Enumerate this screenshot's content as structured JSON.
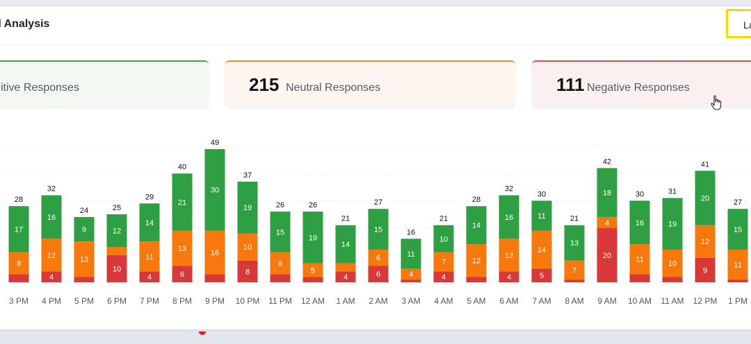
{
  "header": {
    "title": "d Analysis",
    "range_button": "La"
  },
  "cards": {
    "positive": {
      "count": "",
      "label": "itive Responses"
    },
    "neutral": {
      "count": "215",
      "label": "Neutral Responses"
    },
    "negative": {
      "count": "111",
      "label": "Negative Responses"
    }
  },
  "colors": {
    "positive": "#2ea043",
    "neutral": "#f7780c",
    "negative": "#d93838"
  },
  "chart_data": {
    "type": "bar",
    "stacked": true,
    "categories": [
      "3 PM",
      "4 PM",
      "5 PM",
      "6 PM",
      "7 PM",
      "8 PM",
      "9 PM",
      "10 PM",
      "11 PM",
      "12 AM",
      "1 AM",
      "2 AM",
      "3 AM",
      "4 AM",
      "5 AM",
      "6 AM",
      "7 AM",
      "8 AM",
      "9 AM",
      "10 AM",
      "11 AM",
      "12 PM",
      "1 PM"
    ],
    "totals": [
      28,
      32,
      24,
      25,
      29,
      40,
      49,
      37,
      26,
      26,
      21,
      27,
      16,
      21,
      28,
      32,
      30,
      21,
      42,
      30,
      31,
      41,
      27
    ],
    "series": [
      {
        "key": "negative",
        "values": [
          3,
          4,
          2,
          10,
          4,
          6,
          3,
          8,
          3,
          2,
          4,
          6,
          1,
          4,
          2,
          4,
          5,
          1,
          20,
          3,
          2,
          9,
          1
        ]
      },
      {
        "key": "neutral",
        "values": [
          8,
          12,
          13,
          3,
          11,
          13,
          16,
          10,
          8,
          5,
          3,
          6,
          4,
          7,
          12,
          12,
          14,
          7,
          4,
          11,
          10,
          12,
          11
        ]
      },
      {
        "key": "positive",
        "values": [
          17,
          16,
          9,
          12,
          14,
          21,
          30,
          19,
          15,
          19,
          14,
          15,
          11,
          10,
          14,
          16,
          11,
          13,
          18,
          16,
          19,
          20,
          15
        ]
      }
    ],
    "segment_labels": [
      [
        "",
        "8",
        "17"
      ],
      [
        "4",
        "12",
        "16"
      ],
      [
        "",
        "13",
        "9"
      ],
      [
        "10",
        "",
        "12"
      ],
      [
        "4",
        "11",
        "14"
      ],
      [
        "6",
        "13",
        "21"
      ],
      [
        "",
        "16",
        "30"
      ],
      [
        "8",
        "10",
        "19"
      ],
      [
        "",
        "8",
        "15"
      ],
      [
        "",
        "5",
        "19"
      ],
      [
        "4",
        "",
        "14"
      ],
      [
        "6",
        "6",
        "15"
      ],
      [
        "",
        "4",
        "11"
      ],
      [
        "4",
        "7",
        "10"
      ],
      [
        "",
        "12",
        "14"
      ],
      [
        "4",
        "12",
        "16"
      ],
      [
        "5",
        "14",
        "11"
      ],
      [
        "",
        "7",
        "13"
      ],
      [
        "20",
        "4",
        "18"
      ],
      [
        "",
        "11",
        "16"
      ],
      [
        "",
        "10",
        "19"
      ],
      [
        "9",
        "12",
        "20"
      ],
      [
        "",
        "11",
        "15"
      ]
    ],
    "ylim": [
      0,
      50
    ],
    "grid": true
  }
}
